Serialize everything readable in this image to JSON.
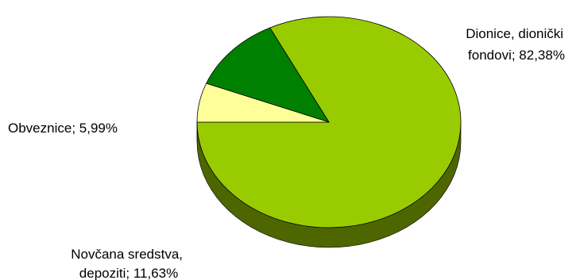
{
  "chart_data": {
    "type": "pie",
    "style": "3d",
    "title": "",
    "slices": [
      {
        "label_lines": [
          "Dionice, dionički",
          "fondovi; 82,38%"
        ],
        "category": "Dionice, dionički fondovi",
        "value": 82.38,
        "color": "#99CC00",
        "side_color": "#4D6600"
      },
      {
        "label_lines": [
          "Novčana sredstva,",
          "depoziti; 11,63%"
        ],
        "category": "Novčana sredstva, depoziti",
        "value": 11.63,
        "color": "#008000",
        "side_color": "#003F00"
      },
      {
        "label_lines": [
          "Obveznice; 5,99%"
        ],
        "category": "Obveznice",
        "value": 5.99,
        "color": "#FFFF99",
        "side_color": "#80804D"
      }
    ],
    "legend": "none"
  }
}
